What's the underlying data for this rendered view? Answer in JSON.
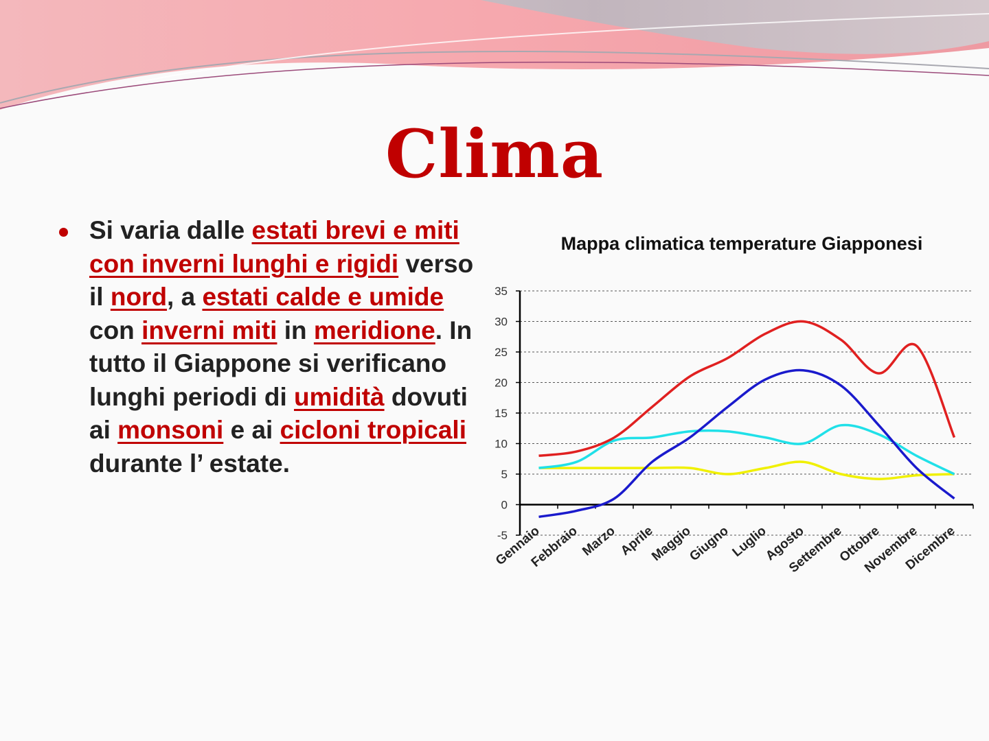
{
  "slide": {
    "title": "Clima",
    "text_segments": [
      {
        "text": "Si varia dalle ",
        "hl": false
      },
      {
        "text": "estati brevi e miti con inverni lunghi e rigidi",
        "hl": true
      },
      {
        "text": " verso il ",
        "hl": false
      },
      {
        "text": "nord",
        "hl": true
      },
      {
        "text": ", a ",
        "hl": false
      },
      {
        "text": "estati calde e umide",
        "hl": true
      },
      {
        "text": " con ",
        "hl": false
      },
      {
        "text": "inverni miti",
        "hl": true
      },
      {
        "text": " in ",
        "hl": false
      },
      {
        "text": "meridione",
        "hl": true
      },
      {
        "text": ". In tutto il Giappone si verificano lunghi periodi di ",
        "hl": false
      },
      {
        "text": "umidità",
        "hl": true
      },
      {
        "text": " dovuti ai ",
        "hl": false
      },
      {
        "text": "monsoni",
        "hl": true
      },
      {
        "text": " e ai ",
        "hl": false
      },
      {
        "text": "cicloni tropicali",
        "hl": true
      },
      {
        "text": " durante l’ estate.",
        "hl": false
      }
    ]
  },
  "colors": {
    "accent": "#c00000",
    "text": "#222222",
    "banner_pink": "#f0a0a8",
    "banner_gray": "#c8c8cc"
  },
  "chart_data": {
    "type": "line",
    "title": "Mappa climatica temperature Giapponesi",
    "xlabel": "",
    "ylabel": "",
    "categories": [
      "Gennaio",
      "Febbraio",
      "Marzo",
      "Aprile",
      "Maggio",
      "Giugno",
      "Luglio",
      "Agosto",
      "Settembre",
      "Ottobre",
      "Novembre",
      "Dicembre"
    ],
    "y_ticks": [
      -5,
      0,
      5,
      10,
      15,
      20,
      25,
      30,
      35
    ],
    "ylim": [
      -5,
      35
    ],
    "grid": "horizontal dashed",
    "legend": "none",
    "series": [
      {
        "color": "#e02020",
        "values": [
          8,
          8.7,
          11,
          16,
          21,
          24,
          28,
          30,
          27,
          21.5,
          26,
          11
        ]
      },
      {
        "color": "#1a1acc",
        "values": [
          -2,
          -1,
          1,
          7,
          11,
          16,
          20.5,
          22,
          19.5,
          13,
          6,
          1
        ]
      },
      {
        "color": "#20e0e8",
        "values": [
          6,
          7,
          10.5,
          11,
          12,
          12,
          11,
          10,
          13,
          11.5,
          8,
          5
        ]
      },
      {
        "color": "#f0f000",
        "values": [
          6,
          6,
          6,
          6,
          6,
          5,
          6,
          7,
          5,
          4.2,
          4.8,
          5
        ]
      }
    ]
  }
}
